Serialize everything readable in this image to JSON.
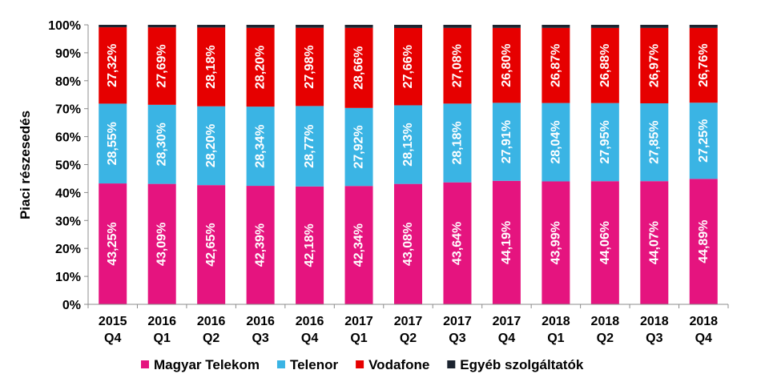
{
  "chart_data": {
    "type": "bar",
    "stacked": true,
    "categories": [
      [
        "2015",
        "Q4"
      ],
      [
        "2016",
        "Q1"
      ],
      [
        "2016",
        "Q2"
      ],
      [
        "2016",
        "Q3"
      ],
      [
        "2016",
        "Q4"
      ],
      [
        "2017",
        "Q1"
      ],
      [
        "2017",
        "Q2"
      ],
      [
        "2017",
        "Q3"
      ],
      [
        "2017",
        "Q4"
      ],
      [
        "2018",
        "Q1"
      ],
      [
        "2018",
        "Q2"
      ],
      [
        "2018",
        "Q3"
      ],
      [
        "2018",
        "Q4"
      ]
    ],
    "series": [
      {
        "name": "Magyar Telekom",
        "color": "#e5147f",
        "values": [
          43.25,
          43.09,
          42.65,
          42.39,
          42.18,
          42.34,
          43.08,
          43.64,
          44.19,
          43.99,
          44.06,
          44.07,
          44.89
        ],
        "labels": [
          "43,25%",
          "43,09%",
          "42,65%",
          "42,39%",
          "42,18%",
          "42,34%",
          "43,08%",
          "43,64%",
          "44,19%",
          "43,99%",
          "44,06%",
          "44,07%",
          "44,89%"
        ]
      },
      {
        "name": "Telenor",
        "color": "#3ab4e4",
        "values": [
          28.55,
          28.3,
          28.2,
          28.34,
          28.77,
          27.92,
          28.13,
          28.18,
          27.91,
          28.04,
          27.95,
          27.85,
          27.25
        ],
        "labels": [
          "28,55%",
          "28,30%",
          "28,20%",
          "28,34%",
          "28,77%",
          "27,92%",
          "28,13%",
          "28,18%",
          "27,91%",
          "28,04%",
          "27,95%",
          "27,85%",
          "27,25%"
        ]
      },
      {
        "name": "Vodafone",
        "color": "#e60000",
        "values": [
          27.32,
          27.69,
          28.18,
          28.2,
          27.98,
          28.66,
          27.66,
          27.08,
          26.8,
          26.87,
          26.88,
          26.97,
          26.76
        ],
        "labels": [
          "27,32%",
          "27,69%",
          "28,18%",
          "28,20%",
          "27,98%",
          "28,66%",
          "27,66%",
          "27,08%",
          "26,80%",
          "26,87%",
          "26,88%",
          "26,97%",
          "26,76%"
        ]
      },
      {
        "name": "Egyéb szolgáltatók",
        "color": "#1c2430",
        "values": [
          0.88,
          0.92,
          0.97,
          1.07,
          1.07,
          1.08,
          1.13,
          1.1,
          1.1,
          1.1,
          1.11,
          1.11,
          1.1
        ],
        "labels": []
      }
    ],
    "ylabel": "Piaci részesedés",
    "xlabel": "",
    "ylim": [
      0,
      100
    ],
    "yticks": [
      "0%",
      "10%",
      "20%",
      "30%",
      "40%",
      "50%",
      "60%",
      "70%",
      "80%",
      "90%",
      "100%"
    ],
    "grid": false,
    "legend_position": "bottom"
  }
}
